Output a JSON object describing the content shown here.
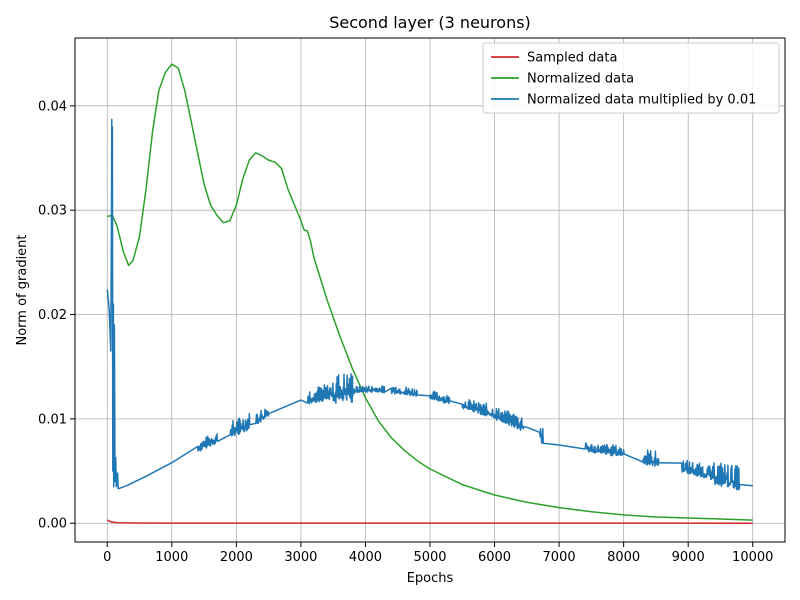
{
  "chart_data": {
    "type": "line",
    "title": "Second layer (3 neurons)",
    "xlabel": "Epochs",
    "ylabel": "Norm of gradient",
    "xlim": [
      -500,
      10500
    ],
    "ylim": [
      -0.0018,
      0.0465
    ],
    "xticks": [
      0,
      1000,
      2000,
      3000,
      4000,
      5000,
      6000,
      7000,
      8000,
      9000,
      10000
    ],
    "xtick_labels": [
      "0",
      "1000",
      "2000",
      "3000",
      "4000",
      "5000",
      "6000",
      "7000",
      "8000",
      "9000",
      "10000"
    ],
    "yticks": [
      0.0,
      0.01,
      0.02,
      0.03,
      0.04
    ],
    "ytick_labels": [
      "0.00",
      "0.01",
      "0.02",
      "0.03",
      "0.04"
    ],
    "grid": true,
    "legend_position": "top-right",
    "series": [
      {
        "name": "Sampled data",
        "color": "#d62728",
        "points": [
          [
            0,
            0.0003
          ],
          [
            50,
            0.00015
          ],
          [
            150,
            5e-05
          ],
          [
            400,
            2e-05
          ],
          [
            1000,
            1e-05
          ],
          [
            10000,
            0.0
          ]
        ]
      },
      {
        "name": "Normalized data",
        "color": "#2ca02c",
        "points": [
          [
            0,
            0.0294
          ],
          [
            80,
            0.0295
          ],
          [
            150,
            0.0285
          ],
          [
            250,
            0.026
          ],
          [
            330,
            0.0247
          ],
          [
            400,
            0.0252
          ],
          [
            500,
            0.0275
          ],
          [
            600,
            0.032
          ],
          [
            700,
            0.0375
          ],
          [
            800,
            0.0415
          ],
          [
            900,
            0.0432
          ],
          [
            1000,
            0.044
          ],
          [
            1100,
            0.0436
          ],
          [
            1200,
            0.0415
          ],
          [
            1300,
            0.0385
          ],
          [
            1400,
            0.0355
          ],
          [
            1500,
            0.0325
          ],
          [
            1600,
            0.0305
          ],
          [
            1700,
            0.0295
          ],
          [
            1800,
            0.0288
          ],
          [
            1900,
            0.029
          ],
          [
            2000,
            0.0305
          ],
          [
            2100,
            0.033
          ],
          [
            2200,
            0.0348
          ],
          [
            2300,
            0.0355
          ],
          [
            2400,
            0.0352
          ],
          [
            2500,
            0.0348
          ],
          [
            2600,
            0.0346
          ],
          [
            2700,
            0.034
          ],
          [
            2800,
            0.032
          ],
          [
            2900,
            0.0305
          ],
          [
            3000,
            0.029
          ],
          [
            3050,
            0.0281
          ],
          [
            3100,
            0.028
          ],
          [
            3150,
            0.027
          ],
          [
            3200,
            0.0255
          ],
          [
            3400,
            0.0215
          ],
          [
            3600,
            0.018
          ],
          [
            3800,
            0.0148
          ],
          [
            4000,
            0.012
          ],
          [
            4200,
            0.0098
          ],
          [
            4400,
            0.0082
          ],
          [
            4600,
            0.007
          ],
          [
            4800,
            0.006
          ],
          [
            5000,
            0.0052
          ],
          [
            5500,
            0.0037
          ],
          [
            6000,
            0.0027
          ],
          [
            6500,
            0.002
          ],
          [
            7000,
            0.0015
          ],
          [
            7500,
            0.0011
          ],
          [
            8000,
            0.0008
          ],
          [
            8500,
            0.0006
          ],
          [
            9000,
            0.0005
          ],
          [
            9500,
            0.0004
          ],
          [
            10000,
            0.0003
          ]
        ]
      },
      {
        "name": "Normalized data multiplied by 0.01",
        "color": "#1f77b4",
        "points": [
          [
            0,
            0.0224
          ],
          [
            30,
            0.0205
          ],
          [
            55,
            0.0165
          ],
          [
            65,
            0.03
          ],
          [
            70,
            0.0387
          ],
          [
            75,
            0.024
          ],
          [
            80,
            0.038
          ],
          [
            85,
            0.005
          ],
          [
            95,
            0.021
          ],
          [
            100,
            0.0035
          ],
          [
            110,
            0.019
          ],
          [
            120,
            0.004
          ],
          [
            130,
            0.0063
          ],
          [
            140,
            0.0035
          ],
          [
            160,
            0.0048
          ],
          [
            170,
            0.0033
          ],
          [
            300,
            0.0036
          ],
          [
            600,
            0.0045
          ],
          [
            1000,
            0.0058
          ],
          [
            1500,
            0.0075
          ],
          [
            2000,
            0.009
          ],
          [
            2500,
            0.0105
          ],
          [
            3000,
            0.0118
          ],
          [
            3500,
            0.0125
          ],
          [
            4000,
            0.0128
          ],
          [
            4500,
            0.0127
          ],
          [
            5000,
            0.0122
          ],
          [
            5500,
            0.0114
          ],
          [
            6000,
            0.0104
          ],
          [
            6500,
            0.0092
          ],
          [
            7000,
            0.0075
          ],
          [
            8000,
            0.0067
          ],
          [
            9000,
            0.0052
          ],
          [
            10000,
            0.0036
          ]
        ],
        "noise_bands": [
          [
            1400,
            1700,
            0.001
          ],
          [
            1900,
            2200,
            0.0015
          ],
          [
            2300,
            2500,
            0.0012
          ],
          [
            3100,
            3500,
            0.0014
          ],
          [
            3500,
            3800,
            0.0028
          ],
          [
            3800,
            4300,
            0.0006
          ],
          [
            4400,
            4800,
            0.0008
          ],
          [
            5000,
            5300,
            0.0008
          ],
          [
            5500,
            5800,
            0.001
          ],
          [
            5800,
            6300,
            0.0012
          ],
          [
            6300,
            6450,
            0.0015
          ],
          [
            6700,
            6750,
            0.002
          ],
          [
            7400,
            7700,
            0.0008
          ],
          [
            7700,
            8000,
            0.001
          ],
          [
            8300,
            8550,
            0.0014
          ],
          [
            8900,
            9400,
            0.0012
          ],
          [
            9400,
            9800,
            0.0022
          ]
        ]
      }
    ]
  }
}
